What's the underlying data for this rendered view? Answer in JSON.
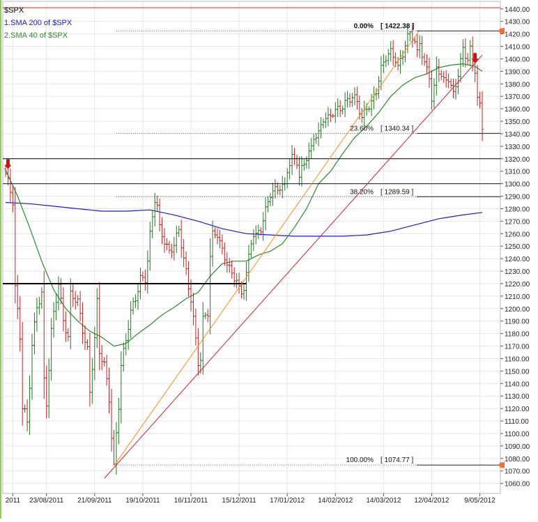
{
  "chart_data": {
    "type": "ohlc-bar",
    "legend": [
      {
        "label": "$SPX",
        "color": "#000000"
      },
      {
        "label": "1.SMA 200  of $SPX",
        "color": "#1a1ad0"
      },
      {
        "label": "2.SMA 40  of $SPX",
        "color": "#2a8a2a"
      }
    ],
    "ylim": [
      1052,
      1446
    ],
    "yticks": [
      1060,
      1070,
      1080,
      1090,
      1100,
      1110,
      1120,
      1130,
      1140,
      1150,
      1160,
      1170,
      1180,
      1190,
      1200,
      1210,
      1220,
      1230,
      1240,
      1250,
      1260,
      1270,
      1280,
      1290,
      1300,
      1310,
      1320,
      1330,
      1340,
      1350,
      1360,
      1370,
      1380,
      1390,
      1400,
      1410,
      1420,
      1430,
      1440
    ],
    "x_count": 199,
    "xticks": [
      {
        "i": 3,
        "label": "2011"
      },
      {
        "i": 17,
        "label": "23/08/2011"
      },
      {
        "i": 37,
        "label": "21/09/2011"
      },
      {
        "i": 57,
        "label": "19/10/2011"
      },
      {
        "i": 77,
        "label": "16/11/2011"
      },
      {
        "i": 97,
        "label": "15/12/2011"
      },
      {
        "i": 117,
        "label": "17/01/2012"
      },
      {
        "i": 137,
        "label": "14/02/2012"
      },
      {
        "i": 157,
        "label": "14/03/2012"
      },
      {
        "i": 177,
        "label": "12/04/2012"
      },
      {
        "i": 197,
        "label": "9/05/2012"
      }
    ],
    "fib_levels": [
      {
        "label": "0.00%",
        "value": "[ 1422.38 ]",
        "level": 1422.38,
        "startIndex": 46,
        "ratio": "0.00%"
      },
      {
        "label": "23.60%",
        "value": "[ 1340.34 ]",
        "level": 1340.34,
        "startIndex": 46,
        "ratio": "23.60%"
      },
      {
        "label": "38.20%",
        "value": "[ 1289.59 ]",
        "level": 1289.59,
        "startIndex": 46,
        "ratio": "38.20%"
      },
      {
        "label": "100.00%",
        "value": "[ 1074.77 ]",
        "level": 1074.77,
        "startIndex": 46,
        "ratio": "100.00%"
      }
    ],
    "horizontal_lines": [
      {
        "level": 1441,
        "color": "#c03030",
        "width": 1
      },
      {
        "level": 1320,
        "color": "#000000",
        "width": 1
      },
      {
        "level": 1300,
        "color": "#0000cc",
        "width": 1
      },
      {
        "level": 1220,
        "color": "#000000",
        "width": 2,
        "endIndex": 100
      }
    ],
    "trend_lines": [
      {
        "color": "#ff8c1a",
        "from": [
          45,
          1074
        ],
        "to": [
          172,
          1423
        ]
      },
      {
        "color": "#d02030",
        "from": [
          41,
          1064
        ],
        "to": [
          198,
          1403
        ]
      }
    ],
    "sma200": [
      [
        0,
        1285
      ],
      [
        10,
        1284
      ],
      [
        20,
        1282
      ],
      [
        30,
        1280
      ],
      [
        40,
        1278
      ],
      [
        50,
        1278
      ],
      [
        60,
        1279
      ],
      [
        70,
        1275
      ],
      [
        80,
        1270
      ],
      [
        90,
        1264
      ],
      [
        100,
        1260
      ],
      [
        110,
        1259
      ],
      [
        120,
        1258
      ],
      [
        130,
        1258
      ],
      [
        140,
        1258
      ],
      [
        150,
        1259
      ],
      [
        160,
        1262
      ],
      [
        170,
        1267
      ],
      [
        180,
        1272
      ],
      [
        190,
        1275
      ],
      [
        198,
        1277
      ]
    ],
    "sma40": [
      [
        0,
        1311
      ],
      [
        5,
        1290
      ],
      [
        10,
        1265
      ],
      [
        15,
        1238
      ],
      [
        20,
        1215
      ],
      [
        25,
        1200
      ],
      [
        30,
        1190
      ],
      [
        35,
        1182
      ],
      [
        40,
        1177
      ],
      [
        45,
        1170
      ],
      [
        50,
        1172
      ],
      [
        55,
        1180
      ],
      [
        60,
        1187
      ],
      [
        65,
        1195
      ],
      [
        70,
        1201
      ],
      [
        75,
        1208
      ],
      [
        80,
        1213
      ],
      [
        85,
        1226
      ],
      [
        90,
        1236
      ],
      [
        95,
        1238
      ],
      [
        100,
        1238
      ],
      [
        105,
        1243
      ],
      [
        110,
        1246
      ],
      [
        115,
        1252
      ],
      [
        120,
        1265
      ],
      [
        125,
        1280
      ],
      [
        130,
        1300
      ],
      [
        135,
        1310
      ],
      [
        140,
        1324
      ],
      [
        145,
        1337
      ],
      [
        150,
        1346
      ],
      [
        155,
        1357
      ],
      [
        160,
        1370
      ],
      [
        165,
        1379
      ],
      [
        170,
        1385
      ],
      [
        175,
        1388
      ],
      [
        180,
        1393
      ],
      [
        185,
        1395
      ],
      [
        190,
        1396
      ],
      [
        195,
        1394
      ],
      [
        198,
        1390
      ]
    ],
    "price_anchors": [
      [
        0,
        1308
      ],
      [
        3,
        1284
      ],
      [
        4,
        1215
      ],
      [
        6,
        1178
      ],
      [
        7,
        1123
      ],
      [
        8,
        1119
      ],
      [
        9,
        1110
      ],
      [
        11,
        1172
      ],
      [
        13,
        1200
      ],
      [
        15,
        1210
      ],
      [
        16,
        1140
      ],
      [
        17,
        1123
      ],
      [
        19,
        1183
      ],
      [
        20,
        1198
      ],
      [
        22,
        1222
      ],
      [
        24,
        1190
      ],
      [
        26,
        1175
      ],
      [
        27,
        1209
      ],
      [
        30,
        1206
      ],
      [
        32,
        1185
      ],
      [
        34,
        1168
      ],
      [
        35,
        1133
      ],
      [
        37,
        1175
      ],
      [
        38,
        1203
      ],
      [
        39,
        1163
      ],
      [
        41,
        1155
      ],
      [
        43,
        1129
      ],
      [
        44,
        1100
      ],
      [
        45,
        1076
      ],
      [
        46,
        1101
      ],
      [
        47,
        1123
      ],
      [
        48,
        1154
      ],
      [
        50,
        1173
      ],
      [
        52,
        1196
      ],
      [
        54,
        1209
      ],
      [
        56,
        1226
      ],
      [
        58,
        1225
      ],
      [
        59,
        1239
      ],
      [
        60,
        1258
      ],
      [
        62,
        1286
      ],
      [
        63,
        1280
      ],
      [
        64,
        1263
      ],
      [
        66,
        1255
      ],
      [
        68,
        1247
      ],
      [
        70,
        1253
      ],
      [
        72,
        1262
      ],
      [
        74,
        1238
      ],
      [
        76,
        1216
      ],
      [
        77,
        1208
      ],
      [
        78,
        1193
      ],
      [
        80,
        1159
      ],
      [
        81,
        1162
      ],
      [
        82,
        1192
      ],
      [
        84,
        1196
      ],
      [
        85,
        1240
      ],
      [
        86,
        1257
      ],
      [
        88,
        1259
      ],
      [
        89,
        1253
      ],
      [
        90,
        1247
      ],
      [
        92,
        1239
      ],
      [
        94,
        1228
      ],
      [
        96,
        1222
      ],
      [
        97,
        1213
      ],
      [
        98,
        1210
      ],
      [
        99,
        1216
      ],
      [
        100,
        1227
      ],
      [
        102,
        1255
      ],
      [
        103,
        1262
      ],
      [
        104,
        1260
      ],
      [
        106,
        1265
      ],
      [
        108,
        1277
      ],
      [
        110,
        1290
      ],
      [
        112,
        1294
      ],
      [
        114,
        1299
      ],
      [
        116,
        1300
      ],
      [
        117,
        1313
      ],
      [
        119,
        1320
      ],
      [
        121,
        1316
      ],
      [
        122,
        1303
      ],
      [
        123,
        1310
      ],
      [
        125,
        1322
      ],
      [
        127,
        1330
      ],
      [
        128,
        1340
      ],
      [
        130,
        1340
      ],
      [
        132,
        1351
      ],
      [
        134,
        1350
      ],
      [
        136,
        1357
      ],
      [
        138,
        1361
      ],
      [
        140,
        1364
      ],
      [
        142,
        1367
      ],
      [
        144,
        1368
      ],
      [
        146,
        1364
      ],
      [
        148,
        1352
      ],
      [
        150,
        1363
      ],
      [
        152,
        1366
      ],
      [
        154,
        1375
      ],
      [
        156,
        1390
      ],
      [
        158,
        1400
      ],
      [
        160,
        1405
      ],
      [
        162,
        1402
      ],
      [
        163,
        1395
      ],
      [
        165,
        1405
      ],
      [
        166,
        1412
      ],
      [
        168,
        1420
      ],
      [
        170,
        1412
      ],
      [
        171,
        1403
      ],
      [
        172,
        1413
      ],
      [
        174,
        1398
      ],
      [
        176,
        1388
      ],
      [
        177,
        1369
      ],
      [
        178,
        1376
      ],
      [
        179,
        1391
      ],
      [
        180,
        1389
      ],
      [
        182,
        1380
      ],
      [
        184,
        1385
      ],
      [
        186,
        1373
      ],
      [
        188,
        1390
      ],
      [
        190,
        1407
      ],
      [
        191,
        1402
      ],
      [
        192,
        1398
      ],
      [
        193,
        1405
      ],
      [
        194,
        1396
      ],
      [
        195,
        1391
      ],
      [
        196,
        1369
      ],
      [
        197,
        1363
      ],
      [
        198,
        1347
      ]
    ],
    "arrows": [
      {
        "index": 1,
        "level": 1314,
        "color": "#d01010"
      },
      {
        "index": 195,
        "level": 1399,
        "color": "#d01010"
      }
    ]
  }
}
